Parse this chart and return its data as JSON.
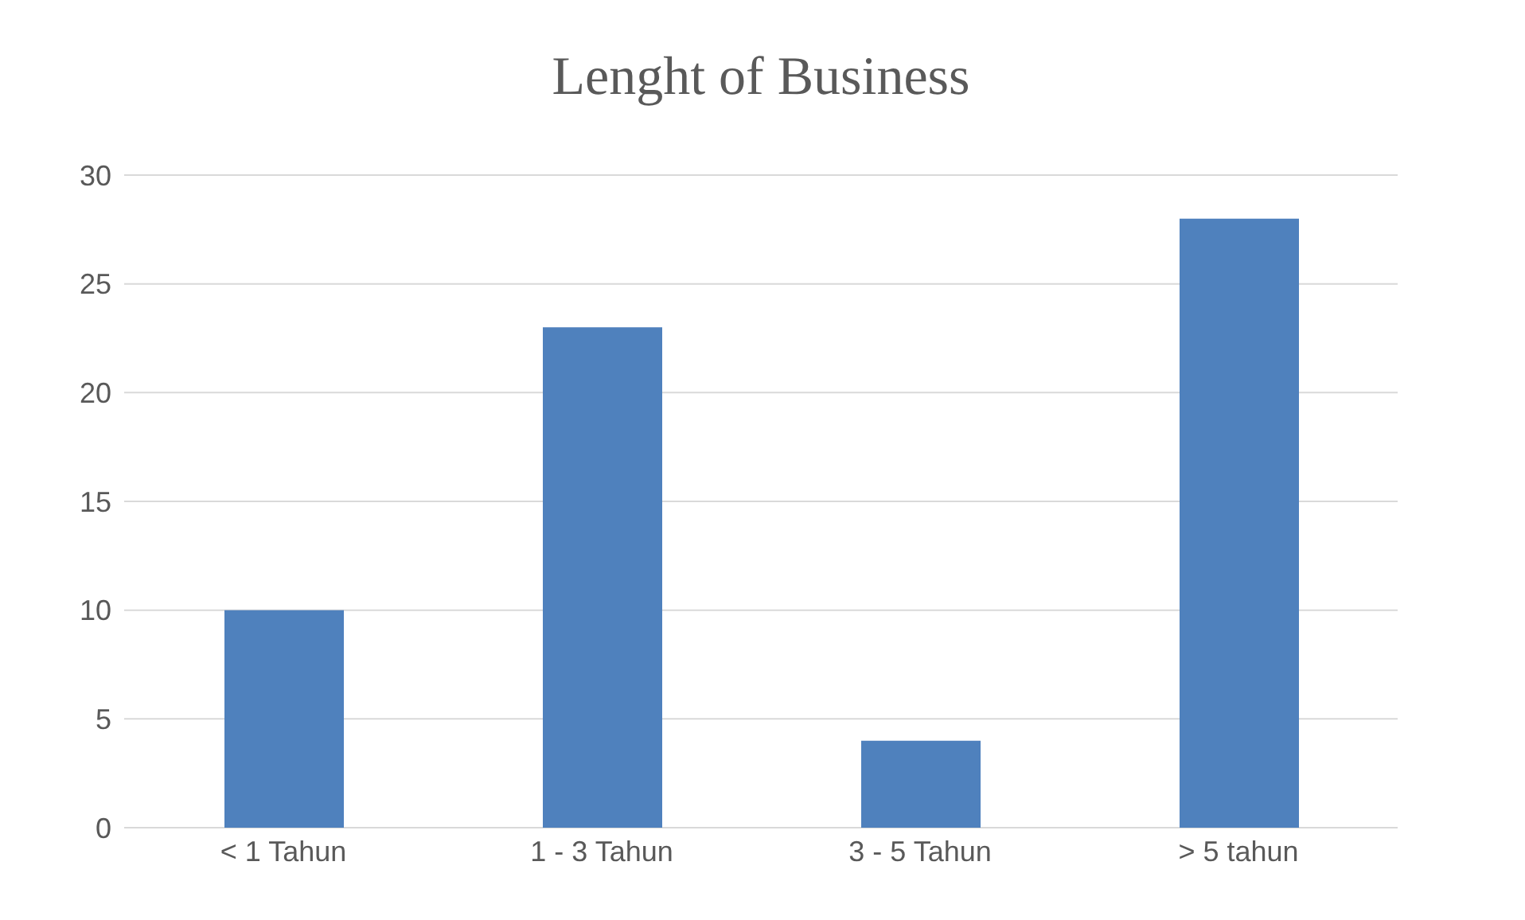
{
  "chart_data": {
    "type": "bar",
    "title": "Lenght of Business",
    "categories": [
      "< 1 Tahun",
      "1 - 3 Tahun",
      "3 - 5 Tahun",
      "> 5 tahun"
    ],
    "values": [
      10,
      23,
      4,
      28
    ],
    "color": "#4f81bd",
    "ylim": [
      0,
      30
    ],
    "yticks": [
      0,
      5,
      10,
      15,
      20,
      25,
      30
    ],
    "grid": "y"
  }
}
